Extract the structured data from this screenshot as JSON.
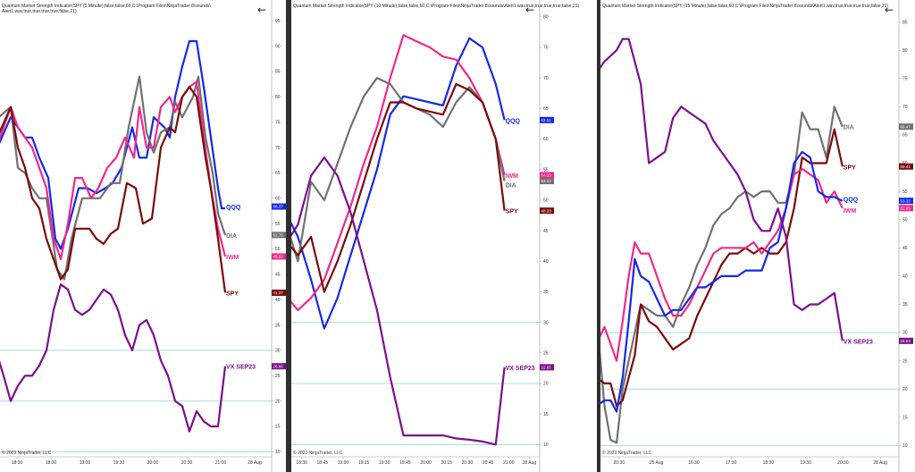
{
  "chart_data": [
    {
      "type": "line",
      "header": [
        "Quantum Market Strength Indicator(SPY (5 Minute),false,false,60,C:\\Program Files\\NinjaTrader 8\\sounds\\",
        "Alert1.wav,true,true,true,true,false,21)"
      ],
      "copyright": "© 2023 NinjaTrader, LLC",
      "x_ticks": [
        "18:00",
        "18:30",
        "19:00",
        "19:30",
        "20:00",
        "20:30",
        "21:00",
        "28 Aug"
      ],
      "x_range": [
        0,
        7.6
      ],
      "y_ticks": [
        "10",
        "15",
        "20",
        "25",
        "30",
        "35",
        "40",
        "45",
        "50",
        "55",
        "60",
        "65",
        "70",
        "75",
        "80",
        "85",
        "90",
        "95"
      ],
      "ylim": [
        9,
        97
      ],
      "ref_lines": [
        10,
        20,
        30
      ],
      "series": [
        {
          "name": "QQQ",
          "color": "#1428e6",
          "tag": "58.37",
          "last": 58.37,
          "x": [
            -0.2,
            0.3,
            0.7,
            0.9,
            1.1,
            1.35,
            1.55,
            1.7,
            1.9,
            2.2,
            2.45,
            2.7,
            2.95,
            3.15,
            3.4,
            3.55,
            3.7,
            3.9,
            4.1,
            4.3,
            4.45,
            4.6,
            4.75,
            4.9,
            5.1,
            5.3,
            5.5,
            5.7,
            5.9,
            6.1,
            6.2,
            6.3
          ],
          "y": [
            68,
            76,
            72,
            72,
            68,
            64,
            52,
            50,
            54,
            62,
            62,
            61,
            62,
            63,
            66,
            70,
            74,
            68,
            68,
            76,
            75,
            74,
            72,
            80,
            86,
            91,
            91,
            82,
            72,
            62,
            58,
            58
          ]
        },
        {
          "name": "DIA",
          "color": "#707070",
          "tag": "52.76",
          "last": 52.76,
          "x": [
            -0.2,
            0.3,
            0.5,
            0.7,
            0.9,
            1.1,
            1.3,
            1.6,
            1.8,
            2.0,
            2.3,
            2.5,
            2.8,
            3.1,
            3.35,
            3.6,
            3.9,
            4.1,
            4.3,
            4.5,
            4.75,
            4.9,
            5.1,
            5.4,
            5.55,
            5.75,
            5.95,
            6.1,
            6.3
          ],
          "y": [
            75,
            78,
            66,
            65,
            62,
            60,
            60,
            46,
            44,
            52,
            60,
            60,
            60,
            63,
            63,
            74,
            84,
            73,
            69,
            73,
            74,
            79,
            76,
            80,
            84,
            72,
            65,
            57,
            52.76
          ]
        },
        {
          "name": "IWM",
          "color": "#f0288c",
          "tag": "48.52",
          "last": 48.52,
          "x": [
            -0.2,
            0.3,
            0.5,
            0.7,
            0.9,
            1.1,
            1.3,
            1.5,
            1.7,
            1.9,
            2.1,
            2.3,
            2.55,
            2.75,
            3.0,
            3.25,
            3.5,
            3.75,
            3.9,
            4.1,
            4.3,
            4.5,
            4.75,
            4.9,
            5.1,
            5.3,
            5.5,
            5.7,
            5.9,
            6.1,
            6.3
          ],
          "y": [
            68,
            78,
            74,
            72,
            70,
            66,
            62,
            52,
            48,
            55,
            64,
            64,
            60,
            62,
            66,
            68,
            72,
            68,
            78,
            70,
            70,
            78,
            80,
            77,
            80,
            82,
            83,
            72,
            62,
            54,
            48.52
          ]
        },
        {
          "name": "SPY",
          "color": "#7a0a0a",
          "tag": "41.37",
          "last": 41.37,
          "x": [
            -0.2,
            0.3,
            0.5,
            0.7,
            0.9,
            1.1,
            1.3,
            1.5,
            1.7,
            1.9,
            2.1,
            2.3,
            2.5,
            2.7,
            2.9,
            3.1,
            3.3,
            3.55,
            3.8,
            4.0,
            4.25,
            4.5,
            4.75,
            4.9,
            5.1,
            5.3,
            5.5,
            5.75,
            5.9,
            6.1,
            6.3
          ],
          "y": [
            70,
            78,
            70,
            66,
            60,
            58,
            52,
            48,
            44,
            46,
            54,
            54,
            54,
            52,
            51,
            53,
            54,
            63,
            62,
            55,
            56,
            70,
            74,
            73,
            80,
            82,
            80,
            68,
            62,
            52,
            41.37
          ]
        },
        {
          "name": "VX SEP23",
          "color": "#7b0f8c",
          "tag": "26.86",
          "last": 26.86,
          "x": [
            -0.2,
            0.1,
            0.3,
            0.5,
            0.7,
            0.9,
            1.1,
            1.3,
            1.5,
            1.7,
            1.9,
            2.1,
            2.3,
            2.5,
            2.7,
            2.9,
            3.1,
            3.3,
            3.5,
            3.7,
            3.9,
            4.1,
            4.3,
            4.5,
            4.7,
            4.9,
            5.1,
            5.3,
            5.5,
            5.7,
            5.9,
            6.1,
            6.3
          ],
          "y": [
            32,
            25,
            20,
            23,
            25,
            25,
            27,
            30,
            38,
            43,
            42,
            38,
            37,
            38,
            40,
            42,
            41,
            38,
            33,
            30,
            35,
            36,
            33,
            28,
            25,
            20,
            19,
            14,
            18,
            16,
            15,
            15,
            26.86
          ]
        }
      ]
    },
    {
      "type": "line",
      "header": [
        "Quantum Market Strength Indicator(SPY (10 Minute),false,false,60,C:\\Program Files\\NinjaTrader 8\\sounds\\Alert1.wav,true,true,true,true,false,21)"
      ],
      "copyright": "© 2023 NinjaTrader, LLC",
      "x_ticks": [
        "18:30",
        "18:45",
        "19:00",
        "19:15",
        "19:30",
        "19:45",
        "20:00",
        "20:15",
        "20:30",
        "20:45",
        "21:00",
        "28 Aug"
      ],
      "x_range": [
        0,
        11.3
      ],
      "y_ticks": [
        "10",
        "15",
        "20",
        "25",
        "30",
        "35",
        "40",
        "45",
        "50",
        "55",
        "60",
        "65",
        "70",
        "75",
        "80"
      ],
      "ylim": [
        8,
        81
      ],
      "ref_lines": [
        10,
        20,
        30
      ],
      "series": [
        {
          "name": "QQQ",
          "color": "#1428e6",
          "tag": "63.11",
          "last": 63.11,
          "x": [
            -0.4,
            0.3,
            0.9,
            1.5,
            2.1,
            2.7,
            3.3,
            3.9,
            4.5,
            5.1,
            5.7,
            6.3,
            6.9,
            7.5,
            8.1,
            8.7,
            9.3,
            9.7
          ],
          "y": [
            49,
            44,
            37,
            29,
            34,
            41,
            48,
            55,
            64,
            67,
            66.5,
            66,
            65.5,
            72,
            76.5,
            75,
            69,
            63.11
          ]
        },
        {
          "name": "IWM",
          "color": "#f0288c",
          "tag": "54.10",
          "last": 54.1,
          "x": [
            -0.4,
            0.3,
            0.9,
            1.5,
            2.1,
            2.7,
            3.3,
            3.9,
            4.5,
            5.1,
            5.7,
            6.3,
            6.9,
            7.5,
            8.1,
            8.7,
            9.3,
            9.7
          ],
          "y": [
            35,
            32,
            34,
            37,
            43,
            49,
            56,
            62,
            70,
            77,
            76,
            75,
            73.5,
            73,
            70,
            66,
            60,
            54.1
          ]
        },
        {
          "name": "DIA",
          "color": "#707070",
          "tag": "53.12",
          "last": 53.12,
          "x": [
            -0.4,
            0.3,
            0.9,
            1.5,
            2.1,
            2.7,
            3.3,
            3.9,
            4.5,
            5.1,
            5.7,
            6.3,
            6.9,
            7.5,
            8.1,
            8.7,
            9.3,
            9.7
          ],
          "y": [
            48,
            40,
            53,
            50,
            56,
            62,
            67,
            70,
            69,
            66,
            65,
            64,
            62,
            66,
            68.5,
            66,
            60,
            53.12
          ]
        },
        {
          "name": "SPY",
          "color": "#7a0a0a",
          "tag": "48.28",
          "last": 48.28,
          "x": [
            -0.4,
            0.3,
            0.9,
            1.5,
            2.1,
            2.7,
            3.3,
            3.9,
            4.5,
            5.1,
            5.7,
            6.3,
            6.9,
            7.5,
            8.1,
            8.7,
            9.3,
            9.7
          ],
          "y": [
            44,
            41,
            44,
            35,
            40,
            46,
            53,
            60,
            66,
            66,
            65,
            64.5,
            64,
            69,
            68,
            66,
            60,
            48.28
          ]
        },
        {
          "name": "VX SEP23",
          "color": "#7b0f8c",
          "tag": "22.65",
          "last": 22.65,
          "x": [
            -0.4,
            0.3,
            0.9,
            1.5,
            2.1,
            2.7,
            3.3,
            3.9,
            4.5,
            5.1,
            5.7,
            6.3,
            6.9,
            7.5,
            8.1,
            8.7,
            9.3,
            9.7
          ],
          "y": [
            42,
            46,
            54,
            57,
            54,
            48,
            40,
            32,
            21,
            11.5,
            11.5,
            11.5,
            11.5,
            11,
            10.8,
            10.5,
            10,
            22.65
          ]
        }
      ]
    },
    {
      "type": "line",
      "header": [
        "Quantum Market Strength Indicator(SPY (15 Minute),false,false,60,C:\\Program Files\\NinjaTrader 8\\sounds\\Alert1.wav,true,true,true,true,false,21)"
      ],
      "copyright": "© 2023 NinjaTrader, LLC",
      "x_ticks": [
        "20:30",
        "25 Aug",
        "16:30",
        "17:30",
        "18:30",
        "19:30",
        "20:30",
        "28 Aug"
      ],
      "x_range": [
        0,
        7.4
      ],
      "y_ticks": [
        "10",
        "15",
        "20",
        "25",
        "30",
        "35",
        "40",
        "45",
        "50",
        "55",
        "60",
        "65",
        "70",
        "75",
        "80",
        "85"
      ],
      "ylim": [
        8,
        87
      ],
      "ref_lines": [
        10,
        20,
        30
      ],
      "series": [
        {
          "name": "DIA",
          "color": "#707070",
          "tag": "66.47",
          "last": 66.47,
          "x": [
            -0.1,
            0.1,
            0.25,
            0.4,
            0.55,
            0.7,
            0.85,
            1.0,
            1.2,
            1.4,
            1.6,
            1.8,
            2.0,
            2.2,
            2.4,
            2.6,
            2.8,
            3.0,
            3.2,
            3.4,
            3.6,
            3.8,
            4.0,
            4.2,
            4.4,
            4.6,
            4.8,
            5.0,
            5.2,
            5.4,
            5.6,
            5.8,
            6.0
          ],
          "y": [
            33,
            17,
            11,
            10.5,
            20,
            25,
            30,
            35,
            34,
            33,
            33,
            31,
            35,
            38,
            42,
            45,
            49,
            51,
            52,
            54,
            55,
            54,
            55,
            55,
            53,
            53,
            58,
            69,
            66,
            66,
            61,
            70,
            66.47
          ]
        },
        {
          "name": "SPY",
          "color": "#7a0a0a",
          "tag": "59.41",
          "last": 59.41,
          "x": [
            -0.1,
            0.1,
            0.25,
            0.4,
            0.55,
            0.7,
            0.85,
            1.0,
            1.2,
            1.4,
            1.6,
            1.8,
            2.0,
            2.2,
            2.4,
            2.6,
            2.8,
            3.0,
            3.2,
            3.4,
            3.6,
            3.8,
            4.0,
            4.2,
            4.4,
            4.6,
            4.8,
            5.0,
            5.2,
            5.4,
            5.6,
            5.8,
            6.0
          ],
          "y": [
            22,
            21,
            21,
            17,
            18,
            22,
            26,
            35,
            32,
            31,
            29,
            27,
            28,
            29,
            33,
            36,
            39,
            42,
            44,
            44,
            45,
            44,
            45,
            44,
            44,
            46,
            52,
            61,
            60,
            60,
            60,
            66,
            59.41
          ]
        },
        {
          "name": "IWM",
          "color": "#f0288c",
          "tag": "52.05",
          "last": 52.05,
          "x": [
            -0.1,
            0.1,
            0.25,
            0.4,
            0.55,
            0.7,
            0.85,
            1.0,
            1.2,
            1.4,
            1.6,
            1.8,
            2.0,
            2.2,
            2.4,
            2.6,
            2.8,
            3.0,
            3.2,
            3.4,
            3.6,
            3.8,
            4.0,
            4.2,
            4.4,
            4.6,
            4.8,
            5.0,
            5.2,
            5.4,
            5.6,
            5.8,
            6.0
          ],
          "y": [
            28,
            31,
            28,
            25,
            32,
            40,
            46,
            44,
            44,
            40,
            36,
            33,
            33,
            35,
            38,
            41,
            44,
            45,
            45,
            45,
            45,
            46,
            44,
            46,
            48,
            52,
            58,
            59,
            58,
            57,
            53,
            55,
            52.05
          ]
        },
        {
          "name": "QQQ",
          "color": "#1428e6",
          "tag": "53.33",
          "last": 53.33,
          "x": [
            -0.1,
            0.1,
            0.25,
            0.4,
            0.55,
            0.7,
            0.85,
            1.0,
            1.2,
            1.4,
            1.6,
            1.8,
            2.0,
            2.2,
            2.4,
            2.6,
            2.8,
            3.0,
            3.2,
            3.4,
            3.6,
            3.8,
            4.0,
            4.2,
            4.4,
            4.6,
            4.8,
            5.0,
            5.2,
            5.4,
            5.6,
            5.8,
            6.0
          ],
          "y": [
            17,
            18,
            18,
            16,
            22,
            32,
            43,
            40,
            39,
            36,
            33,
            34,
            34,
            36,
            38,
            38,
            39,
            40,
            40,
            40,
            41,
            41,
            41,
            45,
            46,
            52,
            60,
            62,
            61,
            55,
            54,
            54,
            53.33
          ]
        },
        {
          "name": "VX SEP23",
          "color": "#7b0f8c",
          "tag": "28.53",
          "last": 28.53,
          "x": [
            -0.1,
            0.1,
            0.25,
            0.4,
            0.55,
            0.7,
            0.85,
            1.0,
            1.2,
            1.4,
            1.6,
            1.8,
            2.0,
            2.2,
            2.4,
            2.6,
            2.8,
            3.0,
            3.2,
            3.4,
            3.6,
            3.8,
            4.0,
            4.2,
            4.4,
            4.6,
            4.8,
            5.0,
            5.2,
            5.4,
            5.6,
            5.8,
            6.0
          ],
          "y": [
            76,
            78,
            79,
            80,
            82,
            82,
            78,
            74,
            60,
            61,
            62,
            68,
            70,
            69,
            68,
            67,
            64,
            62,
            60,
            58,
            55,
            50,
            48,
            48,
            52,
            47,
            35,
            34,
            35,
            35,
            36,
            37,
            28.53
          ]
        }
      ]
    }
  ]
}
